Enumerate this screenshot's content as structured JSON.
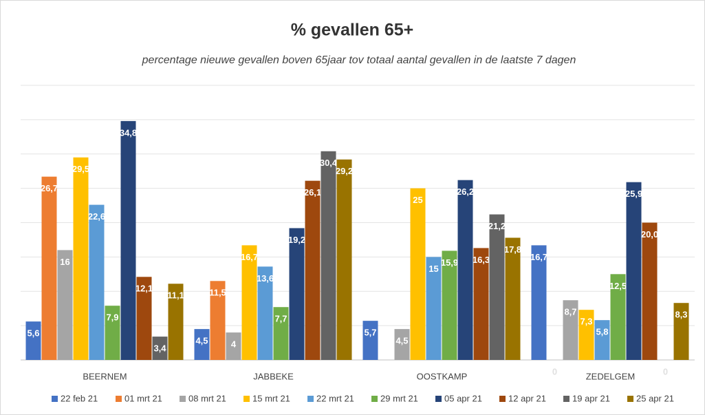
{
  "chart_data": {
    "type": "bar",
    "title": "% gevallen 65+",
    "subtitle": "percentage nieuwe gevallen boven 65jaar tov totaal aantal gevallen in de laatste 7 dagen",
    "categories": [
      "BEERNEM",
      "JABBEKE",
      "OOSTKAMP",
      "ZEDELGEM"
    ],
    "ylim": [
      0,
      40
    ],
    "yticks": [
      0,
      5,
      10,
      15,
      20,
      25,
      30,
      35,
      40
    ],
    "grid": true,
    "tick_labels": false,
    "legend": "bottom",
    "series": [
      {
        "name": "22 feb 21",
        "color": "#4472c4",
        "values": [
          5.6,
          4.5,
          5.7,
          16.7
        ],
        "value_labels": [
          "5,6",
          "4,5",
          "5,7",
          "16,7"
        ]
      },
      {
        "name": "01 mrt 21",
        "color": "#ed7d31",
        "values": [
          26.7,
          11.5,
          null,
          0
        ],
        "value_labels": [
          "26,7",
          "11,5",
          null,
          "0"
        ]
      },
      {
        "name": "08 mrt 21",
        "color": "#a5a5a5",
        "values": [
          16,
          4,
          4.5,
          8.7
        ],
        "value_labels": [
          "16",
          "4",
          "4,5",
          "8,7"
        ]
      },
      {
        "name": "15 mrt 21",
        "color": "#ffc000",
        "values": [
          29.5,
          16.7,
          25,
          7.3
        ],
        "value_labels": [
          "29,5",
          "16,7",
          "25",
          "7,3"
        ]
      },
      {
        "name": "22 mrt 21",
        "color": "#5b9bd5",
        "values": [
          22.6,
          13.6,
          15,
          5.8
        ],
        "value_labels": [
          "22,6",
          "13,6",
          "15",
          "5,8"
        ]
      },
      {
        "name": "29 mrt 21",
        "color": "#70ad47",
        "values": [
          7.9,
          7.7,
          15.9,
          12.5
        ],
        "value_labels": [
          "7,9",
          "7,7",
          "15,9",
          "12,5"
        ]
      },
      {
        "name": "05 apr 21",
        "color": "#264478",
        "values": [
          34.8,
          19.2,
          26.2,
          25.9
        ],
        "value_labels": [
          "34,8",
          "19,2",
          "26,2",
          "25,9"
        ]
      },
      {
        "name": "12 apr 21",
        "color": "#9e480e",
        "values": [
          12.1,
          26.1,
          16.3,
          20.0
        ],
        "value_labels": [
          "12,1",
          "26,1",
          "16,3",
          "20,0"
        ]
      },
      {
        "name": "19 apr 21",
        "color": "#636363",
        "values": [
          3.4,
          30.4,
          21.2,
          0
        ],
        "value_labels": [
          "3,4",
          "30,4",
          "21,2",
          "0"
        ]
      },
      {
        "name": "25 apr 21",
        "color": "#997300",
        "values": [
          11.1,
          29.2,
          17.8,
          8.3
        ],
        "value_labels": [
          "11,1",
          "29,2",
          "17,8",
          "8,3"
        ]
      }
    ]
  }
}
